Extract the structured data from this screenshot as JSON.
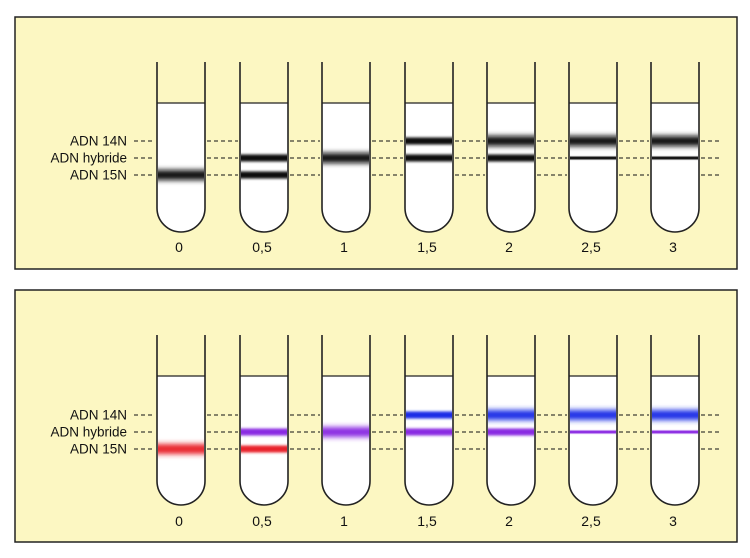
{
  "colors": {
    "panel_bg": "#fcf7c2",
    "panel_border": "#222222",
    "tube_stroke": "#222222",
    "tube_fill": "#ffffff",
    "band_black": "#111111",
    "band_red": "#e8202a",
    "band_purple": "#8a2be2",
    "band_blue": "#1a2fe6"
  },
  "panels": [
    {
      "name": "black-bands-panel",
      "labels": {
        "n14": "ADN 14N",
        "hybrid": "ADN hybride",
        "n15": "ADN 15N"
      },
      "tubes": [
        {
          "generation": "0",
          "bands": [
            {
              "level": "n15",
              "intensity": "strong",
              "color": "band_black"
            }
          ]
        },
        {
          "generation": "0,5",
          "bands": [
            {
              "level": "hybrid",
              "intensity": "medium",
              "color": "band_black"
            },
            {
              "level": "n15",
              "intensity": "medium",
              "color": "band_black"
            }
          ]
        },
        {
          "generation": "1",
          "bands": [
            {
              "level": "hybrid",
              "intensity": "strong",
              "color": "band_black"
            }
          ]
        },
        {
          "generation": "1,5",
          "bands": [
            {
              "level": "n14",
              "intensity": "medium",
              "color": "band_black"
            },
            {
              "level": "hybrid",
              "intensity": "medium",
              "color": "band_black"
            }
          ]
        },
        {
          "generation": "2",
          "bands": [
            {
              "level": "n14",
              "intensity": "strong",
              "color": "band_black"
            },
            {
              "level": "hybrid",
              "intensity": "medium",
              "color": "band_black"
            }
          ]
        },
        {
          "generation": "2,5",
          "bands": [
            {
              "level": "n14",
              "intensity": "strong",
              "color": "band_black"
            },
            {
              "level": "hybrid",
              "intensity": "thin",
              "color": "band_black"
            }
          ]
        },
        {
          "generation": "3",
          "bands": [
            {
              "level": "n14",
              "intensity": "strong",
              "color": "band_black"
            },
            {
              "level": "hybrid",
              "intensity": "thin",
              "color": "band_black"
            }
          ]
        }
      ]
    },
    {
      "name": "colored-bands-panel",
      "labels": {
        "n14": "ADN 14N",
        "hybrid": "ADN hybride",
        "n15": "ADN 15N"
      },
      "tubes": [
        {
          "generation": "0",
          "bands": [
            {
              "level": "n15",
              "intensity": "strong",
              "color": "band_red"
            }
          ]
        },
        {
          "generation": "0,5",
          "bands": [
            {
              "level": "hybrid",
              "intensity": "medium",
              "color": "band_purple"
            },
            {
              "level": "n15",
              "intensity": "medium",
              "color": "band_red"
            }
          ]
        },
        {
          "generation": "1",
          "bands": [
            {
              "level": "hybrid",
              "intensity": "strong",
              "color": "band_purple"
            }
          ]
        },
        {
          "generation": "1,5",
          "bands": [
            {
              "level": "n14",
              "intensity": "medium",
              "color": "band_blue"
            },
            {
              "level": "hybrid",
              "intensity": "medium",
              "color": "band_purple"
            }
          ]
        },
        {
          "generation": "2",
          "bands": [
            {
              "level": "n14",
              "intensity": "strong",
              "color": "band_blue"
            },
            {
              "level": "hybrid",
              "intensity": "medium",
              "color": "band_purple"
            }
          ]
        },
        {
          "generation": "2,5",
          "bands": [
            {
              "level": "n14",
              "intensity": "strong",
              "color": "band_blue"
            },
            {
              "level": "hybrid",
              "intensity": "thin",
              "color": "band_purple"
            }
          ]
        },
        {
          "generation": "3",
          "bands": [
            {
              "level": "n14",
              "intensity": "strong",
              "color": "band_blue"
            },
            {
              "level": "hybrid",
              "intensity": "thin",
              "color": "band_purple"
            }
          ]
        }
      ]
    }
  ]
}
